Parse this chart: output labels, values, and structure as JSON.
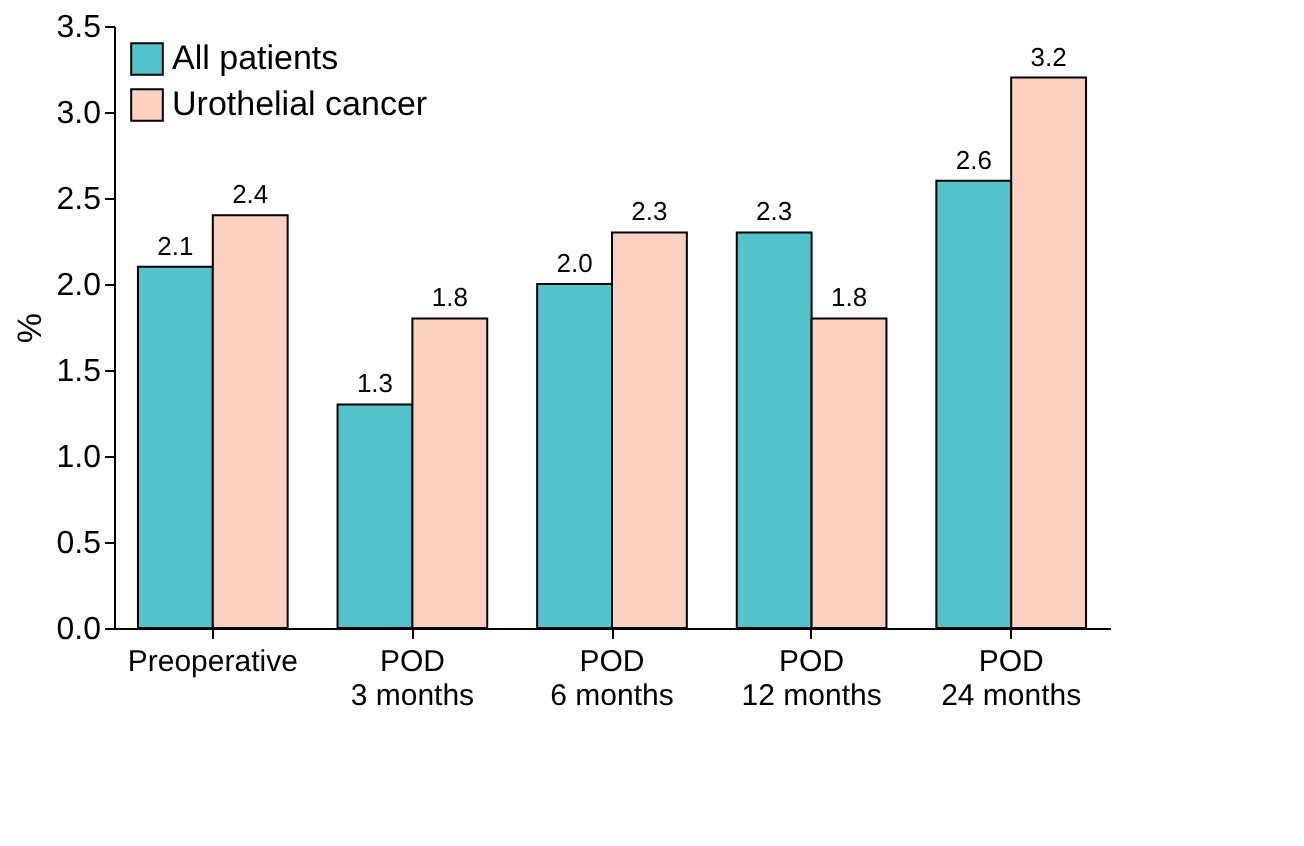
{
  "chart_data": {
    "type": "bar",
    "categories": [
      "Preoperative",
      "POD\n3 months",
      "POD\n6 months",
      "POD\n12 months",
      "POD\n24 months"
    ],
    "series": [
      {
        "name": "All patients",
        "color": "#53c4cc",
        "values": [
          2.1,
          1.3,
          2.0,
          2.3,
          2.6
        ],
        "value_labels": [
          "2.1",
          "1.3",
          "2.0",
          "2.3",
          "2.6"
        ]
      },
      {
        "name": "Urothelial cancer",
        "color": "#fbd0c0",
        "values": [
          2.4,
          1.8,
          2.3,
          1.8,
          3.2
        ],
        "value_labels": [
          "2.4",
          "1.8",
          "2.3",
          "1.8",
          "3.2"
        ]
      }
    ],
    "ylabel": "%",
    "ylim": [
      0,
      3.5
    ],
    "yticks": [
      {
        "value": 0,
        "label": "0.0"
      },
      0.5,
      {
        "value": 1,
        "label": "1.0"
      },
      1.5,
      {
        "value": 2,
        "label": "2.0"
      },
      2.5,
      {
        "value": 3,
        "label": "3.0"
      },
      3.5
    ],
    "grid": false,
    "legend": "top left"
  }
}
